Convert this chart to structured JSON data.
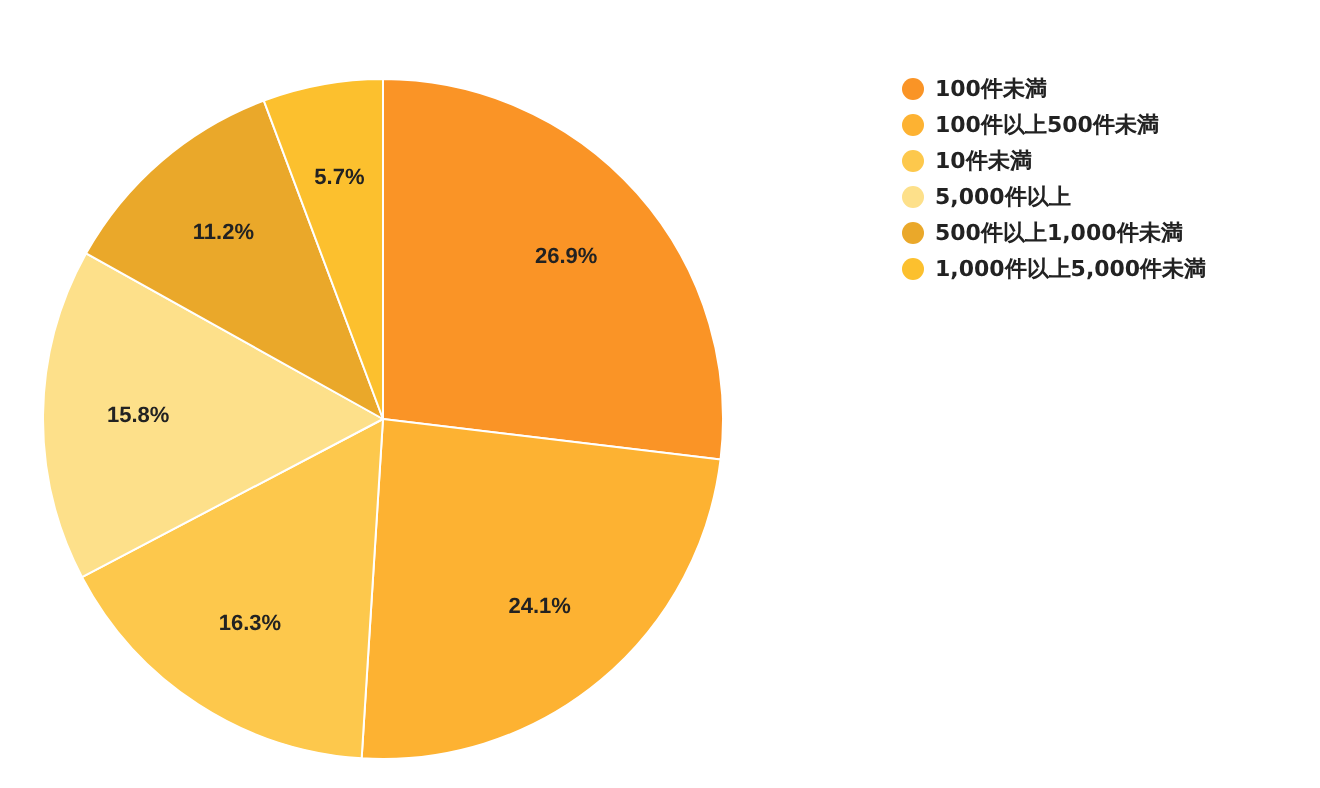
{
  "chart_data": {
    "type": "pie",
    "categories": [
      "100件未満",
      "100件以上500件未満",
      "10件未満",
      "5,000件以上",
      "500件以上1,000件未満",
      "1,000件以上5,000件未満"
    ],
    "values": [
      26.9,
      24.1,
      16.3,
      15.8,
      11.2,
      5.7
    ],
    "colors": [
      "#fa9426",
      "#fdb232",
      "#fdc84c",
      "#fde08a",
      "#eaa82a",
      "#fcc02e"
    ],
    "value_labels": [
      "26.9%",
      "24.1%",
      "16.3%",
      "15.8%",
      "11.2%",
      "5.7%"
    ],
    "legend": "top right"
  }
}
